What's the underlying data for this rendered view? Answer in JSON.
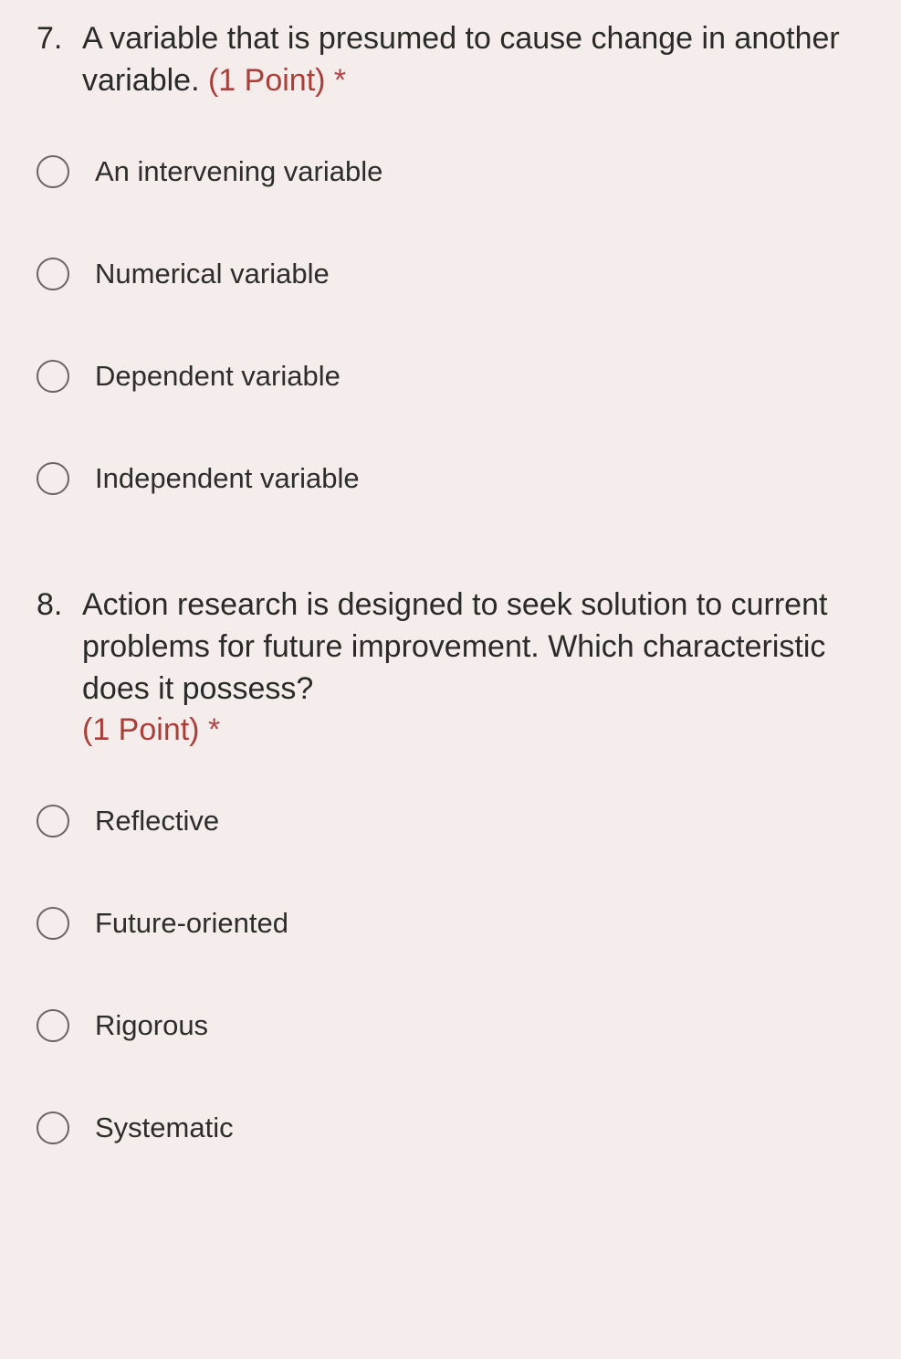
{
  "background_color": "#f5ecec",
  "text_color": "#2a2a2a",
  "points_color": "#a8403a",
  "radio_border_color": "#6b6464",
  "question_fontsize": 34,
  "option_fontsize": 31,
  "questions": [
    {
      "number": "7.",
      "text": "A variable that is presumed to cause change in another variable.",
      "points_label": "(1 Point)",
      "required_marker": "*",
      "options": [
        "An intervening variable",
        "Numerical variable",
        "Dependent variable",
        "Independent variable"
      ]
    },
    {
      "number": "8.",
      "text": "Action research is designed to seek solution to current problems for future improvement. Which characteristic does it possess?",
      "points_label": "(1 Point)",
      "required_marker": "*",
      "options": [
        "Reflective",
        "Future-oriented",
        "Rigorous",
        "Systematic"
      ]
    }
  ]
}
